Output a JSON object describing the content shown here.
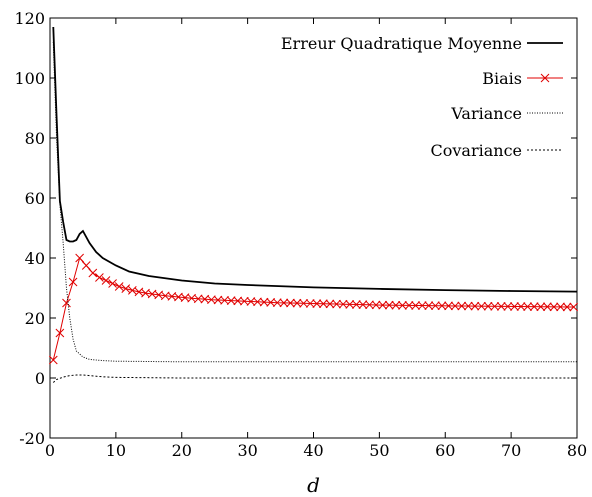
{
  "chart_data": {
    "type": "line",
    "title": "",
    "xlabel": "d",
    "ylabel": "",
    "xlim": [
      0,
      80
    ],
    "ylim": [
      -20,
      120
    ],
    "xticks": [
      0,
      10,
      20,
      30,
      40,
      50,
      60,
      70,
      80
    ],
    "yticks": [
      -20,
      0,
      20,
      40,
      60,
      80,
      100,
      120
    ],
    "grid": false,
    "legend_position": "top-right",
    "series": [
      {
        "name": "Erreur Quadratique Moyenne",
        "style": "solid-thick",
        "color": "#000000",
        "x": [
          0.5,
          1,
          1.5,
          2,
          2.5,
          3,
          3.5,
          4,
          4.5,
          5,
          6,
          7,
          8,
          10,
          12,
          15,
          20,
          25,
          30,
          40,
          50,
          60,
          70,
          80
        ],
        "y": [
          117,
          87,
          59,
          52,
          46,
          45.5,
          45.5,
          46,
          48,
          49,
          45,
          42,
          40,
          37.5,
          35.5,
          34,
          32.5,
          31.5,
          31,
          30.2,
          29.7,
          29.3,
          29,
          28.8
        ]
      },
      {
        "name": "Biais",
        "style": "marker-x",
        "color": "#e00000",
        "x": [
          0.5,
          1.5,
          2.5,
          3.5,
          4.5,
          5.5,
          6.5,
          7.5,
          8.5,
          9.5,
          10.5,
          11.5,
          12.5,
          13.5,
          14.5,
          15.5,
          16.5,
          17.5,
          18.5,
          19.5,
          20.5,
          21.5,
          22.5,
          23.5,
          24.5,
          25.5,
          26.5,
          27.5,
          28.5,
          29.5,
          30.5,
          31.5,
          32.5,
          33.5,
          34.5,
          35.5,
          36.5,
          37.5,
          38.5,
          39.5,
          40.5,
          41.5,
          42.5,
          43.5,
          44.5,
          45.5,
          46.5,
          47.5,
          48.5,
          49.5,
          50.5,
          51.5,
          52.5,
          53.5,
          54.5,
          55.5,
          56.5,
          57.5,
          58.5,
          59.5,
          60.5,
          61.5,
          62.5,
          63.5,
          64.5,
          65.5,
          66.5,
          67.5,
          68.5,
          69.5,
          70.5,
          71.5,
          72.5,
          73.5,
          74.5,
          75.5,
          76.5,
          77.5,
          78.5,
          79.5
        ],
        "y": [
          6,
          15,
          25,
          32,
          40,
          37.5,
          35,
          33.5,
          32.5,
          31.5,
          30.5,
          29.8,
          29.2,
          28.7,
          28.3,
          28,
          27.7,
          27.4,
          27.2,
          27,
          26.8,
          26.6,
          26.4,
          26.3,
          26.1,
          26,
          25.9,
          25.8,
          25.7,
          25.6,
          25.5,
          25.4,
          25.3,
          25.2,
          25.1,
          25.05,
          25,
          24.95,
          24.9,
          24.85,
          24.8,
          24.75,
          24.7,
          24.65,
          24.6,
          24.55,
          24.5,
          24.45,
          24.4,
          24.35,
          24.3,
          24.28,
          24.25,
          24.22,
          24.2,
          24.17,
          24.15,
          24.12,
          24.1,
          24.07,
          24.05,
          24.02,
          24,
          23.98,
          23.96,
          23.94,
          23.92,
          23.9,
          23.88,
          23.86,
          23.84,
          23.82,
          23.8,
          23.78,
          23.76,
          23.74,
          23.72,
          23.7,
          23.68,
          23.66
        ]
      },
      {
        "name": "Variance",
        "style": "dotted",
        "color": "#000000",
        "x": [
          0.5,
          1,
          1.5,
          2,
          2.5,
          3,
          3.5,
          4,
          5,
          6,
          8,
          10,
          15,
          20,
          30,
          40,
          50,
          60,
          70,
          80
        ],
        "y": [
          112,
          80,
          58,
          45,
          30,
          20,
          13,
          9,
          7,
          6.2,
          5.8,
          5.6,
          5.5,
          5.4,
          5.4,
          5.4,
          5.4,
          5.4,
          5.4,
          5.4
        ]
      },
      {
        "name": "Covariance",
        "style": "dashed-fine",
        "color": "#000000",
        "x": [
          0.5,
          1,
          2,
          3,
          4,
          5,
          6,
          8,
          10,
          20,
          30,
          40,
          50,
          60,
          70,
          80
        ],
        "y": [
          -1.5,
          -0.5,
          0.3,
          0.8,
          1,
          1,
          0.8,
          0.4,
          0.2,
          0,
          0,
          0,
          0,
          0,
          0,
          0
        ]
      }
    ]
  }
}
